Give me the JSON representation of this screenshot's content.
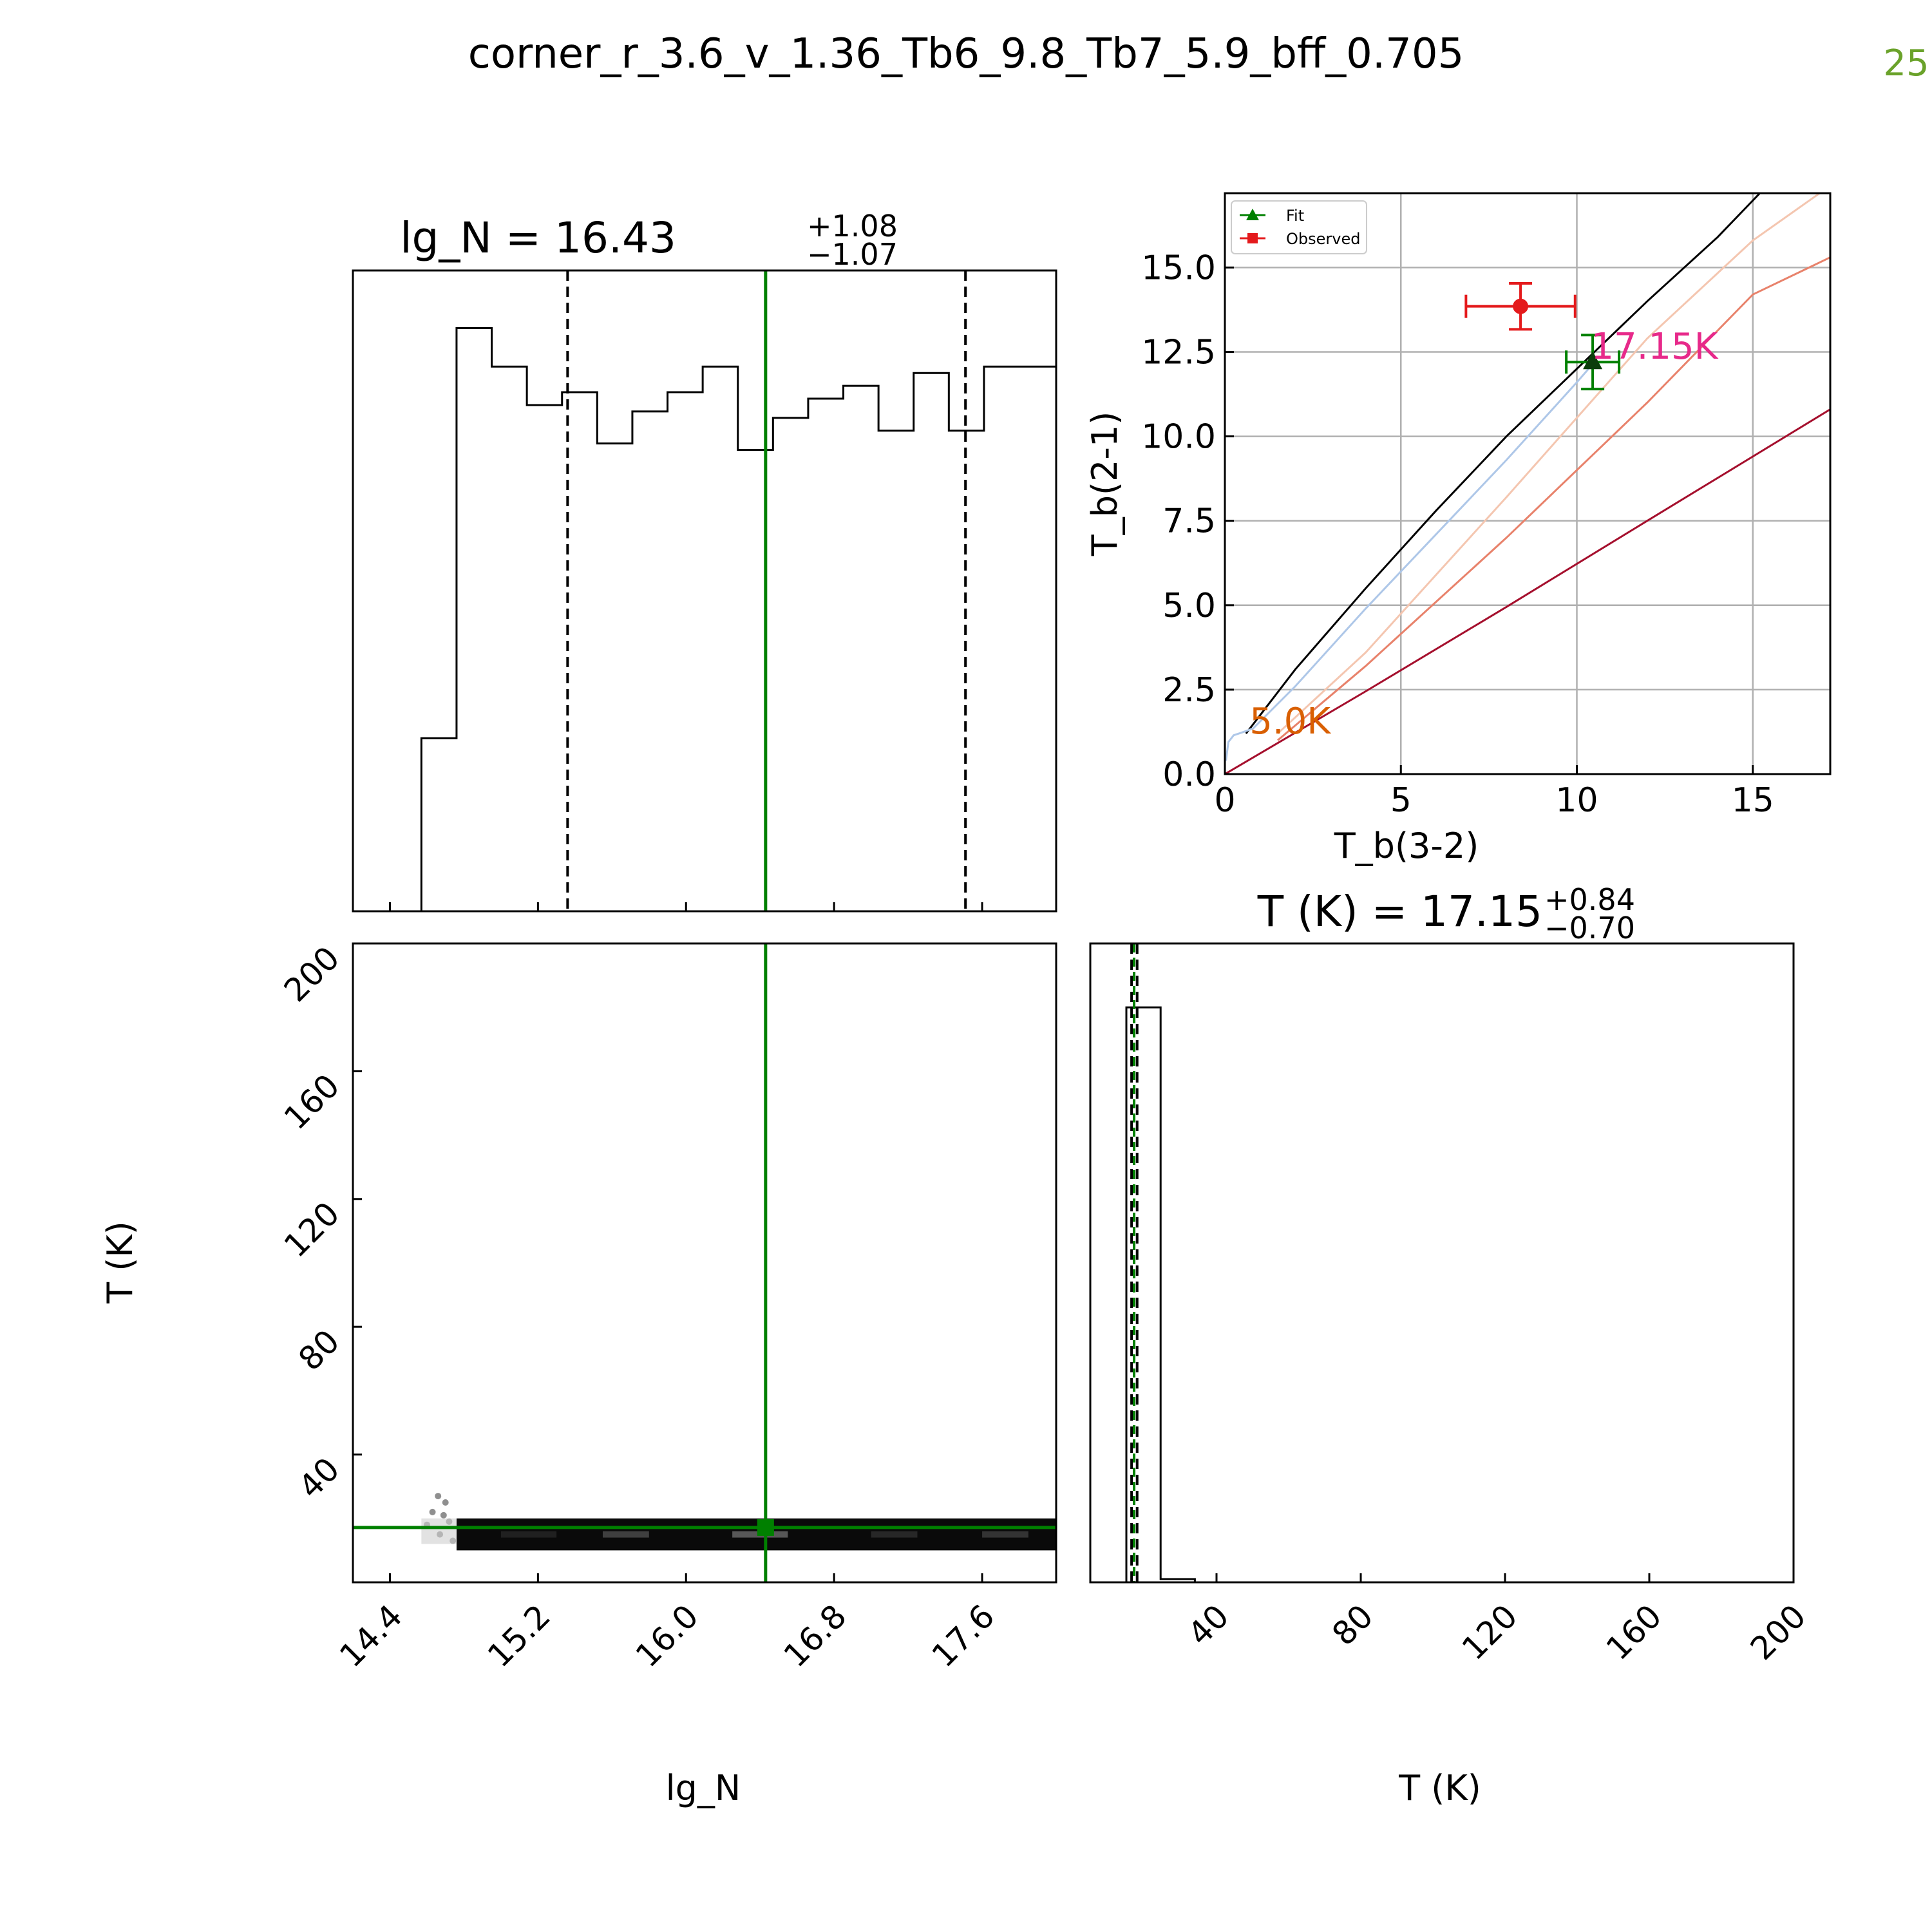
{
  "page_title": "corner_r_3.6_v_1.36_Tb6_9.8_Tb7_5.9_bff_0.705",
  "page_number": "25",
  "colors": {
    "fit": "#008000",
    "observed": "#e41a1c",
    "hist_line": "#000000",
    "label_low": "#d95f02",
    "label_high": "#e7298a",
    "grid": "#b0b0b0"
  },
  "chart_data": [
    {
      "panel": "hist_lgN",
      "type": "bar",
      "style": "step histogram",
      "title_main": "lg_N = 16.43",
      "title_plus": "+1.08",
      "title_minus": "−1.07",
      "xlim": [
        14.2,
        18.0
      ],
      "bin_edges": [
        14.2,
        14.57,
        14.76,
        14.95,
        15.14,
        15.33,
        15.52,
        15.71,
        15.9,
        16.09,
        16.28,
        16.47,
        16.66,
        16.85,
        17.04,
        17.23,
        17.42,
        17.61,
        17.8,
        18.0
      ],
      "counts": [
        0,
        0.27,
        0.91,
        0.85,
        0.79,
        0.81,
        0.73,
        0.78,
        0.81,
        0.85,
        0.72,
        0.77,
        0.8,
        0.82,
        0.75,
        0.84,
        0.75,
        0.85,
        0.85
      ],
      "quantile_lines": [
        15.36,
        17.51
      ],
      "median_line": 16.43,
      "truth_line": 16.43
    },
    {
      "panel": "tb_diagram",
      "type": "line",
      "xlabel": "T_b(3-2)",
      "ylabel": "T_b(2-1)",
      "xlim": [
        0,
        17.2
      ],
      "ylim": [
        0,
        17.2
      ],
      "xticks": [
        "0",
        "5",
        "10",
        "15"
      ],
      "yticks": [
        "0.0",
        "2.5",
        "5.0",
        "7.5",
        "10.0",
        "12.5",
        "15.0"
      ],
      "grid": true,
      "legend": {
        "position": "top-left",
        "entries": [
          "Fit",
          "Observed"
        ]
      },
      "series": [
        {
          "color": "#000000",
          "points": [
            [
              0.6,
              1.2
            ],
            [
              2,
              3.1
            ],
            [
              4,
              5.5
            ],
            [
              6,
              7.8
            ],
            [
              8,
              10.0
            ],
            [
              10,
              12.0
            ],
            [
              12,
              14.0
            ],
            [
              14,
              15.9
            ],
            [
              15.2,
              17.2
            ]
          ]
        },
        {
          "color": "#aec7e8",
          "points": [
            [
              0.03,
              0.4
            ],
            [
              0.1,
              0.95
            ],
            [
              0.25,
              1.15
            ],
            [
              0.45,
              1.22
            ],
            [
              0.8,
              1.35
            ],
            [
              2,
              2.6
            ],
            [
              4,
              4.9
            ],
            [
              6,
              7.1
            ],
            [
              8,
              9.3
            ],
            [
              10,
              11.6
            ],
            [
              10.5,
              12.2
            ]
          ]
        },
        {
          "color": "#f4c6b0",
          "points": [
            [
              1.5,
              1.2
            ],
            [
              4,
              3.6
            ],
            [
              8,
              8.2
            ],
            [
              12,
              12.9
            ],
            [
              15,
              15.8
            ],
            [
              16.9,
              17.2
            ]
          ]
        },
        {
          "color": "#e8826b",
          "points": [
            [
              1.5,
              1.0
            ],
            [
              4,
              3.2
            ],
            [
              8,
              7.0
            ],
            [
              12,
              11.0
            ],
            [
              15,
              14.2
            ],
            [
              17.2,
              15.3
            ]
          ]
        },
        {
          "color": "#a50f2d",
          "points": [
            [
              0,
              0.0
            ],
            [
              4,
              2.45
            ],
            [
              8,
              4.95
            ],
            [
              12,
              7.5
            ],
            [
              17.2,
              10.8
            ]
          ]
        }
      ],
      "observed": {
        "x": 8.4,
        "y": 13.85,
        "xerr": 1.55,
        "yerr": 0.68
      },
      "fit": {
        "x": 10.45,
        "y": 12.2,
        "xerr": 0.75,
        "yerr": 0.8
      },
      "labels": [
        {
          "text": "5.0K",
          "x": 0.7,
          "y": 1.2
        },
        {
          "text": "17.15K",
          "x": 10.4,
          "y": 12.3
        }
      ]
    },
    {
      "panel": "scatter_2d",
      "type": "scatter",
      "xlabel": "lg_N",
      "ylabel": "T (K)",
      "xlim": [
        14.2,
        18.0
      ],
      "ylim": [
        0,
        200
      ],
      "xticks": [
        "14.4",
        "15.2",
        "16.0",
        "16.8",
        "17.6"
      ],
      "yticks": [
        "40",
        "80",
        "120",
        "160"
      ],
      "truth": {
        "x": 16.43,
        "y": 17.15
      },
      "density_band": {
        "x_start": 14.76,
        "x_end": 18.0,
        "y_low": 10,
        "y_high": 20
      }
    },
    {
      "panel": "hist_T",
      "type": "bar",
      "style": "step histogram",
      "title_main": "T (K) = 17.15",
      "title_plus": "+0.84",
      "title_minus": "−0.70",
      "xlabel": "T (K)",
      "xlim": [
        5,
        200
      ],
      "xticks": [
        "40",
        "80",
        "120",
        "160",
        "200"
      ],
      "bin_edges": [
        5,
        15,
        24.5,
        34,
        200
      ],
      "counts": [
        0,
        0.9,
        0.005,
        0
      ],
      "quantile_lines": [
        16.45,
        17.99
      ],
      "median_line": 17.15,
      "truth_line": 17.15
    }
  ]
}
